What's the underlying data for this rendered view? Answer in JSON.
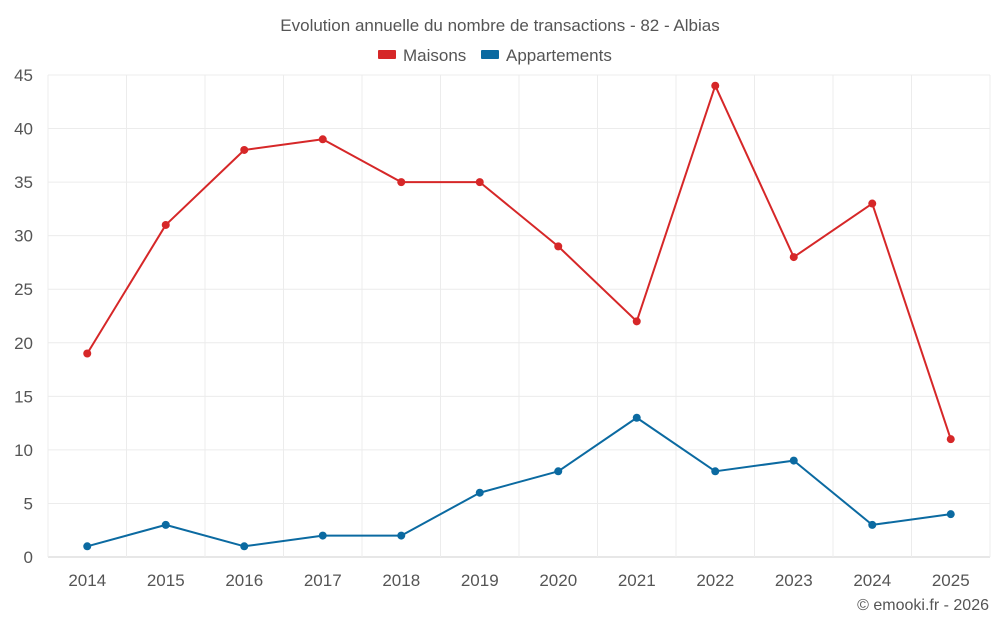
{
  "chart_data": {
    "type": "line",
    "title": "Evolution annuelle du nombre de transactions - 82 - Albias",
    "categories": [
      "2014",
      "2015",
      "2016",
      "2017",
      "2018",
      "2019",
      "2020",
      "2021",
      "2022",
      "2023",
      "2024",
      "2025"
    ],
    "series": [
      {
        "name": "Maisons",
        "color": "#d62728",
        "values": [
          19,
          31,
          38,
          39,
          35,
          35,
          29,
          22,
          44,
          28,
          33,
          11
        ]
      },
      {
        "name": "Appartements",
        "color": "#0b6aa1",
        "values": [
          1,
          3,
          1,
          2,
          2,
          6,
          8,
          13,
          8,
          9,
          3,
          4
        ]
      }
    ],
    "yticks": [
      0,
      5,
      10,
      15,
      20,
      25,
      30,
      35,
      40,
      45
    ],
    "ylim": [
      0,
      45
    ],
    "grid": true,
    "legend": "top-center",
    "xlabel": "",
    "ylabel": ""
  },
  "footer": "© emooki.fr - 2026"
}
